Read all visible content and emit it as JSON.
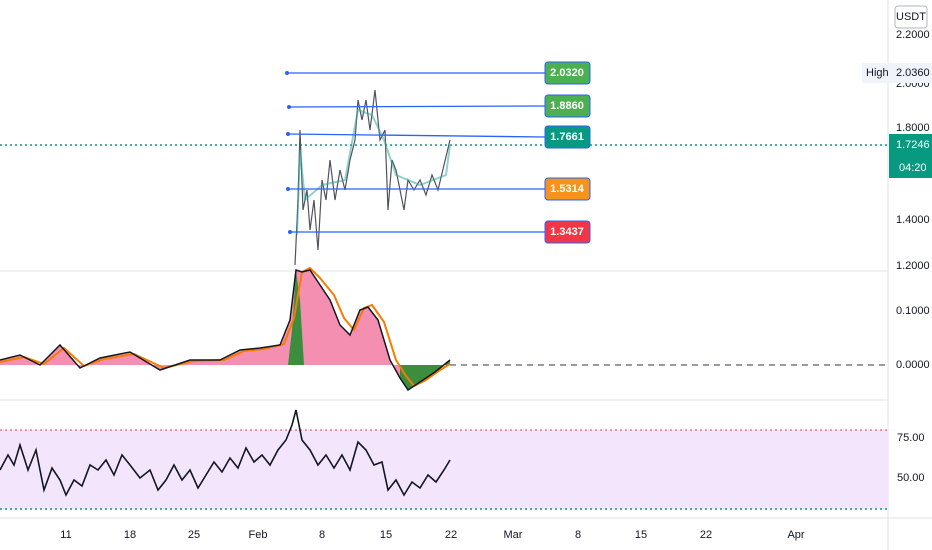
{
  "currency": "USDT",
  "price_axis": {
    "ticks": [
      "2.2000",
      "2.0000",
      "1.8000",
      "1.4000",
      "1.2000"
    ]
  },
  "high": {
    "label": "High",
    "value": "2.0360"
  },
  "last_price": {
    "value": "1.7246",
    "countdown": "04:20"
  },
  "levels": [
    "2.0320",
    "1.8860",
    "1.7661",
    "1.5314",
    "1.3437"
  ],
  "oscillator_axis": {
    "ticks": [
      "0.1000",
      "0.0000"
    ]
  },
  "rsi_axis": {
    "ticks": [
      "75.00",
      "50.00"
    ]
  },
  "time_axis": {
    "labels": [
      "11",
      "18",
      "25",
      "Feb",
      "8",
      "15",
      "22",
      "Mar",
      "8",
      "15",
      "22",
      "Apr"
    ]
  }
}
